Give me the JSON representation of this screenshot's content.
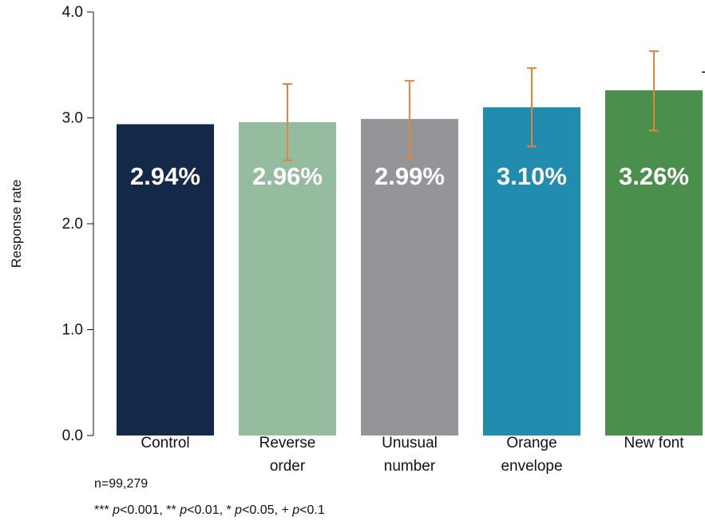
{
  "chart_data": {
    "type": "bar",
    "ylabel": "Response rate",
    "ylim": [
      0,
      4.0
    ],
    "yticks": [
      "0.0",
      "1.0",
      "2.0",
      "3.0",
      "4.0"
    ],
    "categories": [
      [
        "Control"
      ],
      [
        "Reverse",
        "order"
      ],
      [
        "Unusual",
        "number"
      ],
      [
        "Orange",
        "envelope"
      ],
      [
        "New font"
      ]
    ],
    "values": [
      2.94,
      2.96,
      2.99,
      3.1,
      3.26
    ],
    "value_labels": [
      "2.94%",
      "2.96%",
      "2.99%",
      "3.10%",
      "3.26%"
    ],
    "error_bars": [
      null,
      [
        2.6,
        3.32
      ],
      [
        2.62,
        3.35
      ],
      [
        2.73,
        3.47
      ],
      [
        2.88,
        3.63
      ]
    ],
    "significance": [
      "",
      "",
      "",
      "",
      "+"
    ],
    "grid": false,
    "colors": {
      "bars": [
        "#14284a",
        "#96bca0",
        "#939598",
        "#218cad",
        "#4a8f4c"
      ],
      "error_bar": "#e8833a",
      "axis": "#111111",
      "bar_label": "#ffffff"
    }
  },
  "notes": {
    "n": "n=99,279",
    "sig_parts": [
      {
        "t": "*** ",
        "i": false
      },
      {
        "t": "p",
        "i": true
      },
      {
        "t": "<0.001, ** ",
        "i": false
      },
      {
        "t": "p",
        "i": true
      },
      {
        "t": "<0.01, * ",
        "i": false
      },
      {
        "t": "p",
        "i": true
      },
      {
        "t": "<0.05, + ",
        "i": false
      },
      {
        "t": "p",
        "i": true
      },
      {
        "t": "<0.1",
        "i": false
      }
    ]
  }
}
